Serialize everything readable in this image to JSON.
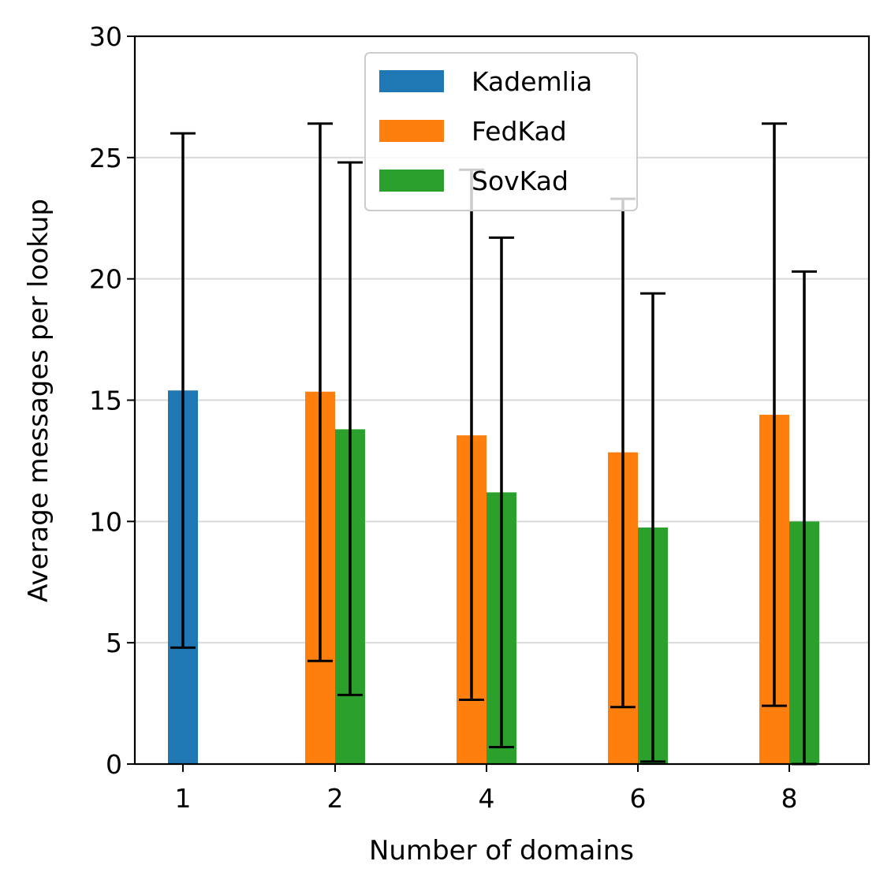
{
  "chart_data": {
    "type": "bar",
    "title": "",
    "xlabel": "Number of domains",
    "ylabel": "Average messages per lookup",
    "ylim": [
      0,
      30
    ],
    "yticks": [
      "0",
      "5",
      "10",
      "15",
      "20",
      "25",
      "30"
    ],
    "categories": [
      "1",
      "2",
      "4",
      "6",
      "8"
    ],
    "grid": "horizontal",
    "legend_position": "upper center",
    "series": [
      {
        "name": "Kademlia",
        "color": "#1f77b4",
        "values": [
          15.4,
          null,
          null,
          null,
          null
        ],
        "err_low": [
          4.8,
          null,
          null,
          null,
          null
        ],
        "err_high": [
          26.0,
          null,
          null,
          null,
          null
        ]
      },
      {
        "name": "FedKad",
        "color": "#ff7f0e",
        "values": [
          null,
          15.35,
          13.55,
          12.85,
          14.4
        ],
        "err_low": [
          null,
          4.25,
          2.65,
          2.35,
          2.4
        ],
        "err_high": [
          null,
          26.4,
          24.5,
          23.3,
          26.4
        ]
      },
      {
        "name": "SovKad",
        "color": "#2ca02c",
        "values": [
          null,
          13.8,
          11.2,
          9.75,
          10.0
        ],
        "err_low": [
          null,
          2.85,
          0.7,
          0.1,
          0.0
        ],
        "err_high": [
          null,
          24.8,
          21.7,
          19.4,
          20.3
        ]
      }
    ]
  }
}
